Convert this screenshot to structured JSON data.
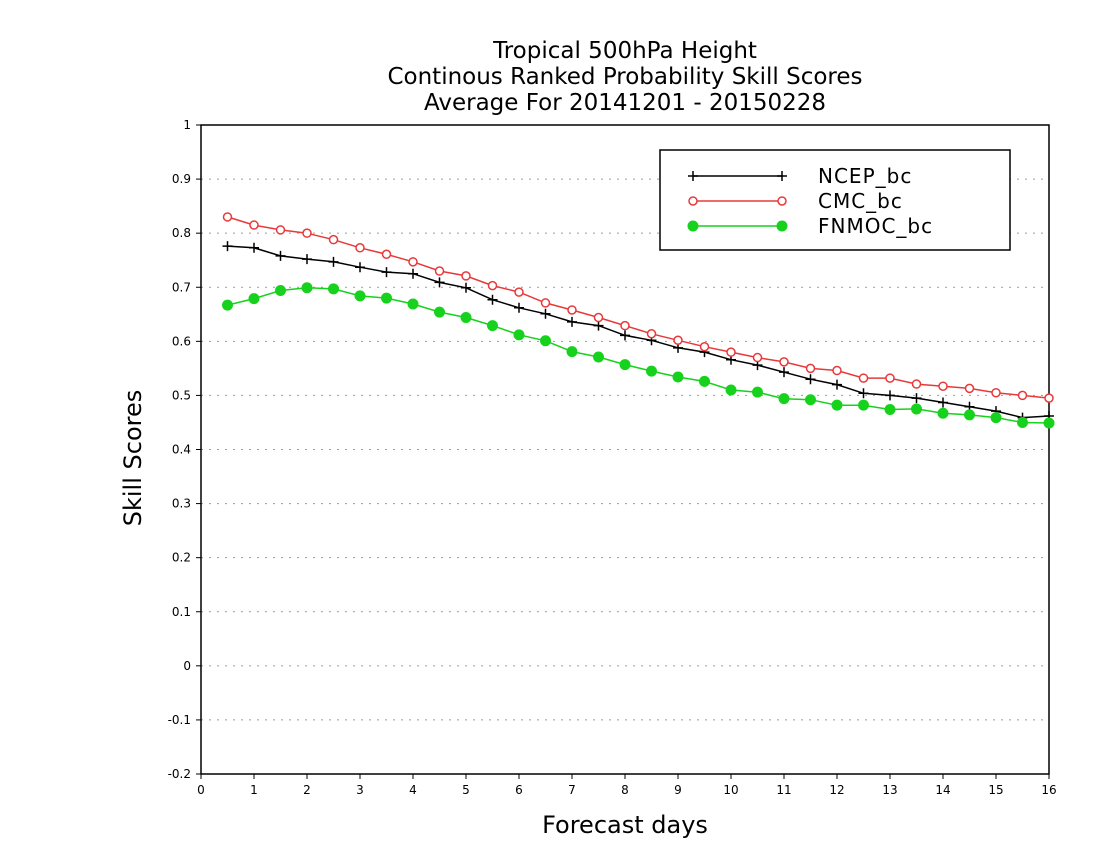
{
  "chart_data": {
    "type": "line",
    "title_lines": [
      "Tropical 500hPa Height",
      "Continous Ranked Probability Skill Scores",
      "Average For 20141201 - 20150228"
    ],
    "xlabel": "Forecast days",
    "ylabel": "Skill Scores",
    "xlim": [
      0,
      16
    ],
    "ylim": [
      -0.2,
      1
    ],
    "x_ticks": [
      "0",
      "1",
      "2",
      "3",
      "4",
      "5",
      "6",
      "7",
      "8",
      "9",
      "10",
      "11",
      "12",
      "13",
      "14",
      "15",
      "16"
    ],
    "y_ticks": [
      "-0.2",
      "-0.1",
      "0",
      "0.1",
      "0.2",
      "0.3",
      "0.4",
      "0.5",
      "0.6",
      "0.7",
      "0.8",
      "0.9",
      "1"
    ],
    "grid": true,
    "legend_position": "top-right",
    "x": [
      0.5,
      1,
      1.5,
      2,
      2.5,
      3,
      3.5,
      4,
      4.5,
      5,
      5.5,
      6,
      6.5,
      7,
      7.5,
      8,
      8.5,
      9,
      9.5,
      10,
      10.5,
      11,
      11.5,
      12,
      12.5,
      13,
      13.5,
      14,
      14.5,
      15,
      15.5,
      16
    ],
    "series": [
      {
        "name": "NCEP_bc",
        "color": "#000000",
        "marker": "plus",
        "values": [
          0.776,
          0.773,
          0.758,
          0.752,
          0.747,
          0.737,
          0.728,
          0.725,
          0.709,
          0.699,
          0.677,
          0.662,
          0.651,
          0.636,
          0.629,
          0.611,
          0.602,
          0.588,
          0.58,
          0.566,
          0.556,
          0.543,
          0.53,
          0.52,
          0.504,
          0.5,
          0.495,
          0.487,
          0.479,
          0.471,
          0.459,
          0.462
        ]
      },
      {
        "name": "CMC_bc",
        "color": "#e8393a",
        "marker": "open-circle",
        "values": [
          0.83,
          0.815,
          0.806,
          0.8,
          0.788,
          0.773,
          0.761,
          0.747,
          0.73,
          0.721,
          0.703,
          0.691,
          0.671,
          0.658,
          0.644,
          0.629,
          0.614,
          0.602,
          0.59,
          0.58,
          0.57,
          0.562,
          0.55,
          0.546,
          0.532,
          0.532,
          0.521,
          0.517,
          0.513,
          0.505,
          0.5,
          0.495
        ]
      },
      {
        "name": "FNMOC_bc",
        "color": "#17d21c",
        "marker": "filled-circle",
        "values": [
          0.667,
          0.679,
          0.694,
          0.699,
          0.697,
          0.684,
          0.68,
          0.669,
          0.654,
          0.644,
          0.629,
          0.612,
          0.601,
          0.581,
          0.571,
          0.557,
          0.545,
          0.534,
          0.526,
          0.51,
          0.506,
          0.494,
          0.492,
          0.482,
          0.482,
          0.474,
          0.475,
          0.467,
          0.464,
          0.459,
          0.45,
          0.449
        ]
      }
    ]
  }
}
